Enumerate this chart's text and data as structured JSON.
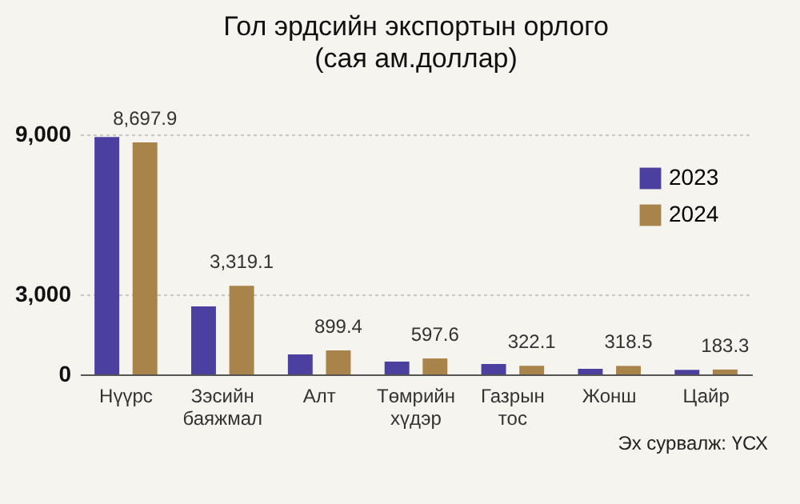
{
  "chart_data": {
    "type": "bar",
    "title": "Гол эрдсийн экспортын орлого",
    "subtitle": "(сая ам.доллар)",
    "categories": [
      "Нүүрс",
      "Зэсийн баяжмал",
      "Алт",
      "Төмрийн хүдэр",
      "Газрын тос",
      "Жонш",
      "Цайр"
    ],
    "series": [
      {
        "name": "2023",
        "color": "#4b3fa0",
        "values": [
          8900,
          2550,
          750,
          480,
          390,
          210,
          170
        ]
      },
      {
        "name": "2024",
        "color": "#a8844a",
        "values": [
          8697.9,
          3319.1,
          899.4,
          597.6,
          322.1,
          318.5,
          183.3
        ],
        "value_labels": [
          "8,697.9",
          "3,319.1",
          "899.4",
          "597.6",
          "322.1",
          "318.5",
          "183.3"
        ]
      }
    ],
    "ylim": [
      0,
      9000
    ],
    "yticks": [
      0,
      {
        "value": 3000,
        "label": "3,000"
      },
      {
        "value": 9000,
        "label": "9,000"
      }
    ],
    "grid": "y",
    "legend": "top right",
    "annotations": [
      "Эх сурвалж: ҮСХ"
    ]
  }
}
